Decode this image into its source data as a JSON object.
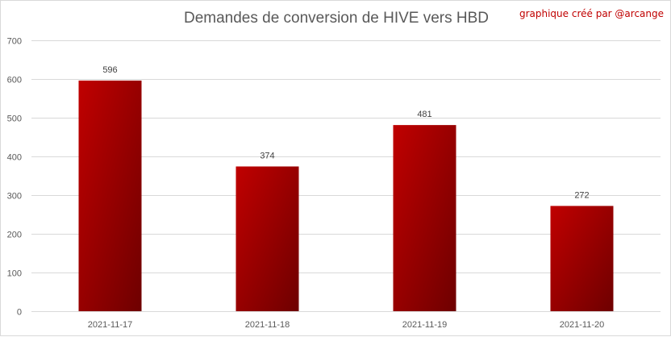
{
  "chart_data": {
    "type": "bar",
    "title": "Demandes de conversion de HIVE vers HBD",
    "credit": "graphique créé par @arcange",
    "categories": [
      "2021-11-17",
      "2021-11-18",
      "2021-11-19",
      "2021-11-20"
    ],
    "values": [
      596,
      374,
      481,
      272
    ],
    "data_labels": [
      "596",
      "374",
      "481",
      "272"
    ],
    "ylim": [
      0,
      700
    ],
    "yticks": [
      0,
      100,
      200,
      300,
      400,
      500,
      600,
      700
    ],
    "grid": true,
    "legend": "none",
    "colors": {
      "bar_light": "#c00000",
      "bar_dark": "#6e0000",
      "grid": "#d9d9d9",
      "credit": "#c00000"
    }
  }
}
